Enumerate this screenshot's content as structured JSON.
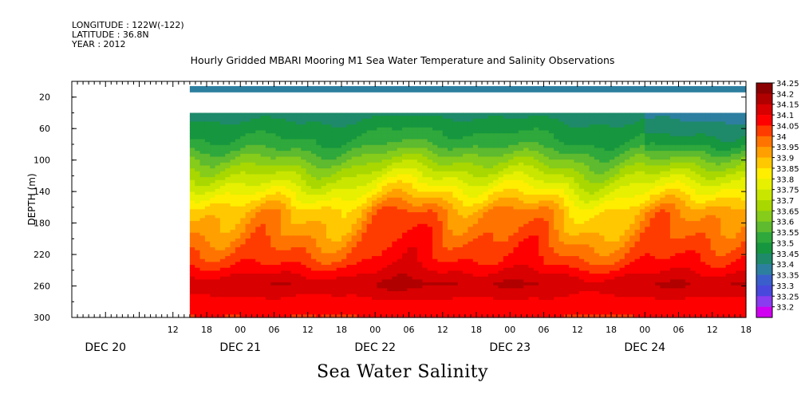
{
  "header": {
    "longitude": "LONGITUDE : 122W(-122)",
    "latitude": "LATITUDE : 36.8N",
    "year": "YEAR : 2012"
  },
  "chart_data": {
    "type": "heatmap",
    "title": "Hourly Gridded MBARI Mooring M1 Sea Water Temperature and Salinity Observations",
    "bottom_title": "Sea Water Salinity",
    "ylabel": "DEPTH (m)",
    "ylim": [
      0,
      300
    ],
    "y_inverted": true,
    "y_ticks": [
      "20",
      "60",
      "100",
      "140",
      "180",
      "220",
      "260",
      "300"
    ],
    "x_hour_ticks": [
      "12",
      "18",
      "00",
      "06",
      "12",
      "18",
      "00",
      "06",
      "12",
      "18",
      "00",
      "06",
      "12",
      "18",
      "00",
      "06",
      "12",
      "18"
    ],
    "x_day_labels": [
      "DEC 20",
      "DEC 21",
      "DEC 22",
      "DEC 23",
      "DEC 24"
    ],
    "x_range_hours_from_dec20_00": [
      -6,
      114
    ],
    "data_start_hour": 15,
    "surface_band_depth_m": [
      6,
      14
    ],
    "gap_depth_m": [
      14,
      40
    ],
    "colorbar": {
      "levels": [
        "34.25",
        "34.2",
        "34.15",
        "34.1",
        "34.05",
        "34",
        "33.95",
        "33.9",
        "33.85",
        "33.8",
        "33.75",
        "33.7",
        "33.65",
        "33.6",
        "33.55",
        "33.5",
        "33.45",
        "33.4",
        "33.35",
        "33.3",
        "33.25",
        "33.2"
      ],
      "colors": [
        "#8b0000",
        "#b00000",
        "#d80000",
        "#ff0000",
        "#ff3c00",
        "#ff7400",
        "#ff9f00",
        "#ffc800",
        "#ffee00",
        "#e6f000",
        "#c8e600",
        "#a8d800",
        "#86cc1a",
        "#5eba2e",
        "#2fa83c",
        "#16963e",
        "#1e8a6a",
        "#2d7fa0",
        "#3a5fcc",
        "#4848dd",
        "#8a3cf0",
        "#d000f0"
      ]
    },
    "profile_depth_m": [
      40,
      80,
      110,
      140,
      165,
      200,
      230,
      258,
      285,
      300
    ],
    "profile_salinity": [
      33.48,
      33.58,
      33.72,
      33.86,
      33.98,
      34.04,
      34.1,
      34.2,
      34.12,
      34.1
    ],
    "surface_salinity": 33.4
  }
}
